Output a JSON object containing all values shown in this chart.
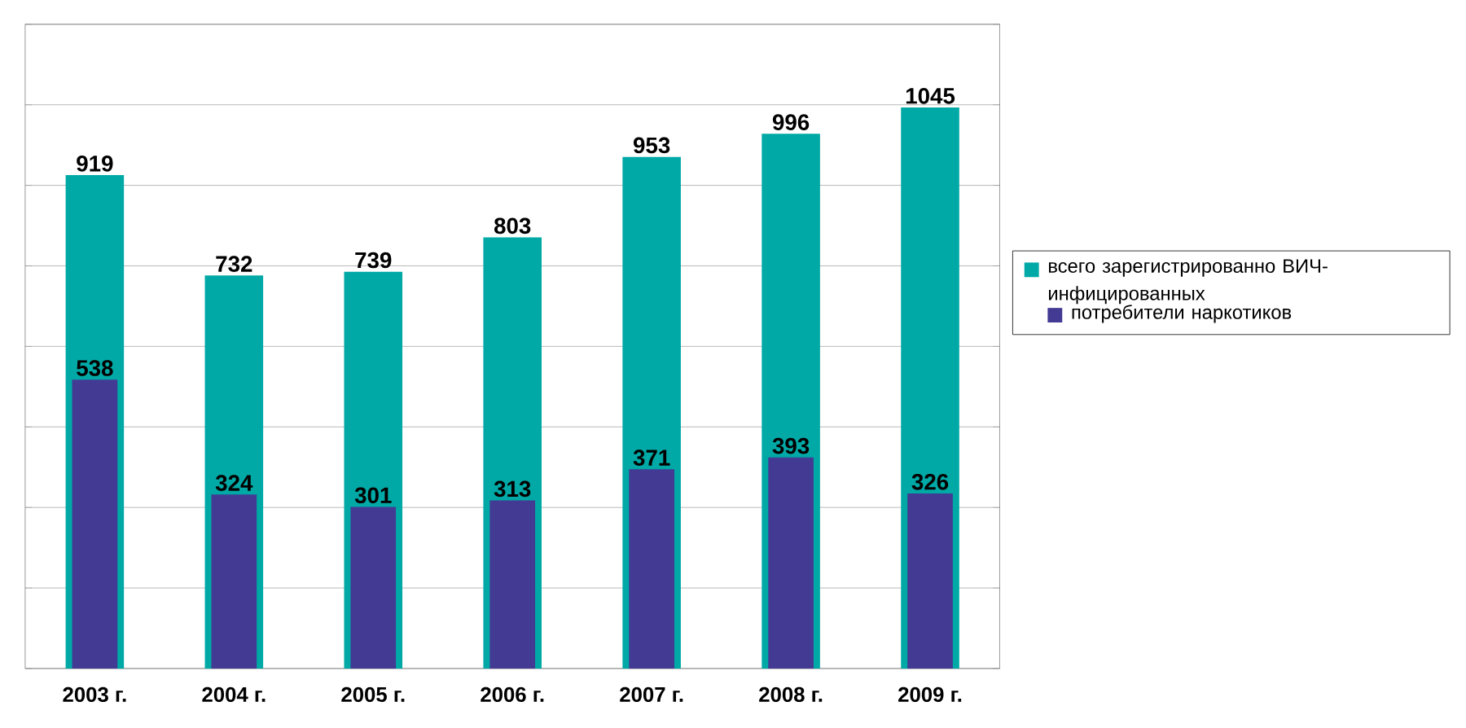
{
  "chart_data": {
    "type": "bar",
    "categories": [
      "2003 г.",
      "2004 г.",
      "2005 г.",
      "2006 г.",
      "2007 г.",
      "2008 г.",
      "2009 г."
    ],
    "series": [
      {
        "name": "всего зарегистрированно ВИЧ-инфицированных",
        "color": "#00a9a6",
        "values": [
          919,
          732,
          739,
          803,
          953,
          996,
          1045
        ]
      },
      {
        "name": "потребители наркотиков",
        "color": "#433a93",
        "values": [
          538,
          324,
          301,
          313,
          371,
          393,
          326
        ]
      }
    ],
    "ylim": [
      0,
      1200
    ],
    "yticks": [
      {
        "value": 0,
        "label": null
      },
      {
        "value": 150,
        "label": null
      },
      {
        "value": 300,
        "label": null
      },
      {
        "value": 450,
        "label": null
      },
      {
        "value": 600,
        "label": null
      },
      {
        "value": 750,
        "label": null
      },
      {
        "value": 900,
        "label": null
      },
      {
        "value": 1050,
        "label": null
      },
      {
        "value": 1200,
        "label": null
      }
    ],
    "grid": "y",
    "tick_labels": "x",
    "data_labels": true,
    "legend": "right"
  }
}
